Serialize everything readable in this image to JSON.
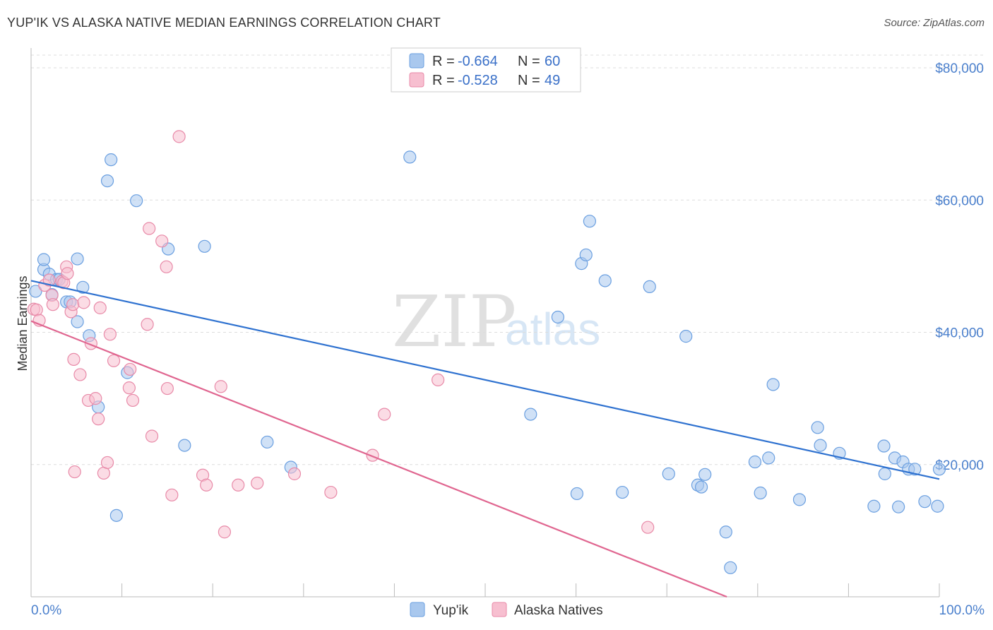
{
  "header": {
    "title": "YUP'IK VS ALASKA NATIVE MEDIAN EARNINGS CORRELATION CHART",
    "source": "Source: ZipAtlas.com"
  },
  "watermark": {
    "zip": "ZIP",
    "atlas": "atlas"
  },
  "legend_top": {
    "rows": [
      {
        "r_label": "R = ",
        "r_value": "-0.664",
        "n_label": "N = ",
        "n_value": "60",
        "color": "#a9c8ee",
        "stroke": "#6a9fe0"
      },
      {
        "r_label": "R = ",
        "r_value": "-0.528",
        "n_label": "N = ",
        "n_value": "49",
        "color": "#f7bfd0",
        "stroke": "#e88aa8"
      }
    ]
  },
  "legend_bottom": {
    "items": [
      {
        "label": "Yup'ik",
        "color": "#a9c8ee",
        "stroke": "#6a9fe0"
      },
      {
        "label": "Alaska Natives",
        "color": "#f7bfd0",
        "stroke": "#e88aa8"
      }
    ]
  },
  "chart_data": {
    "type": "scatter",
    "title": "YUP'IK VS ALASKA NATIVE MEDIAN EARNINGS CORRELATION CHART",
    "xlabel": "",
    "ylabel": "Median Earnings",
    "x_tick_labels": [
      "0.0%",
      "100.0%"
    ],
    "y_tick_labels": [
      "$20,000",
      "$40,000",
      "$60,000",
      "$80,000"
    ],
    "y_ticks": [
      20000,
      40000,
      60000,
      80000
    ],
    "xlim": [
      0,
      100
    ],
    "ylim": [
      0,
      83000
    ],
    "grid": true,
    "series": [
      {
        "name": "Yup'ik",
        "color": "#a9c8ee",
        "stroke": "#6a9fe0",
        "line_color": "#2f72d0",
        "trend": [
          [
            0,
            47800
          ],
          [
            100,
            17800
          ]
        ],
        "points": [
          [
            0.5,
            46200
          ],
          [
            1.4,
            49500
          ],
          [
            1.4,
            51000
          ],
          [
            2.0,
            48800
          ],
          [
            2.3,
            45700
          ],
          [
            2.8,
            48000
          ],
          [
            3.1,
            48000
          ],
          [
            3.9,
            44600
          ],
          [
            4.3,
            44600
          ],
          [
            5.1,
            51100
          ],
          [
            5.1,
            41600
          ],
          [
            5.7,
            46800
          ],
          [
            6.4,
            39500
          ],
          [
            7.4,
            28700
          ],
          [
            8.4,
            62900
          ],
          [
            8.8,
            66100
          ],
          [
            9.4,
            12300
          ],
          [
            10.6,
            33900
          ],
          [
            11.6,
            59900
          ],
          [
            15.1,
            52600
          ],
          [
            16.9,
            22900
          ],
          [
            19.1,
            53000
          ],
          [
            26.0,
            23400
          ],
          [
            28.6,
            19600
          ],
          [
            41.7,
            66500
          ],
          [
            55.0,
            27600
          ],
          [
            58.0,
            42300
          ],
          [
            60.1,
            15600
          ],
          [
            60.6,
            50400
          ],
          [
            61.1,
            51700
          ],
          [
            61.5,
            56800
          ],
          [
            63.2,
            47800
          ],
          [
            65.1,
            15800
          ],
          [
            68.1,
            46900
          ],
          [
            70.2,
            18600
          ],
          [
            72.1,
            39400
          ],
          [
            73.4,
            16900
          ],
          [
            73.8,
            16600
          ],
          [
            74.2,
            18500
          ],
          [
            76.5,
            9800
          ],
          [
            77.0,
            4400
          ],
          [
            79.7,
            20400
          ],
          [
            80.3,
            15700
          ],
          [
            81.2,
            21000
          ],
          [
            81.7,
            32100
          ],
          [
            84.6,
            14700
          ],
          [
            86.6,
            25600
          ],
          [
            86.9,
            22900
          ],
          [
            89.0,
            21700
          ],
          [
            92.8,
            13700
          ],
          [
            93.9,
            22800
          ],
          [
            94.0,
            18600
          ],
          [
            95.1,
            21000
          ],
          [
            95.5,
            13600
          ],
          [
            96.0,
            20400
          ],
          [
            96.6,
            19300
          ],
          [
            97.3,
            19300
          ],
          [
            98.4,
            14400
          ],
          [
            99.8,
            13700
          ],
          [
            100.0,
            19300
          ]
        ]
      },
      {
        "name": "Alaska Natives",
        "color": "#f7bfd0",
        "stroke": "#e88aa8",
        "line_color": "#e06690",
        "trend": [
          [
            0,
            41700
          ],
          [
            76.6,
            0
          ]
        ],
        "points": [
          [
            0.3,
            43500
          ],
          [
            0.6,
            43400
          ],
          [
            0.9,
            41800
          ],
          [
            1.5,
            47100
          ],
          [
            2.0,
            47900
          ],
          [
            2.3,
            45600
          ],
          [
            2.4,
            44200
          ],
          [
            3.4,
            47700
          ],
          [
            3.6,
            47500
          ],
          [
            3.9,
            49900
          ],
          [
            4.0,
            48900
          ],
          [
            4.4,
            43100
          ],
          [
            4.6,
            44200
          ],
          [
            4.7,
            35900
          ],
          [
            4.8,
            18900
          ],
          [
            5.4,
            33600
          ],
          [
            5.8,
            44500
          ],
          [
            6.3,
            29700
          ],
          [
            6.6,
            38300
          ],
          [
            7.1,
            30000
          ],
          [
            7.4,
            26900
          ],
          [
            7.6,
            43700
          ],
          [
            8.0,
            18700
          ],
          [
            8.4,
            20300
          ],
          [
            8.7,
            39700
          ],
          [
            9.1,
            35700
          ],
          [
            10.8,
            31600
          ],
          [
            10.9,
            34400
          ],
          [
            11.2,
            29700
          ],
          [
            12.8,
            41200
          ],
          [
            13.0,
            55700
          ],
          [
            13.3,
            24300
          ],
          [
            14.4,
            53800
          ],
          [
            15.0,
            31500
          ],
          [
            14.9,
            49900
          ],
          [
            15.5,
            15400
          ],
          [
            16.3,
            69600
          ],
          [
            18.9,
            18400
          ],
          [
            19.3,
            16900
          ],
          [
            20.9,
            31800
          ],
          [
            21.3,
            9800
          ],
          [
            22.8,
            16900
          ],
          [
            24.9,
            17200
          ],
          [
            29.0,
            18600
          ],
          [
            33.0,
            15800
          ],
          [
            37.6,
            21400
          ],
          [
            38.9,
            27600
          ],
          [
            44.8,
            32800
          ],
          [
            67.9,
            10500
          ]
        ]
      }
    ]
  }
}
